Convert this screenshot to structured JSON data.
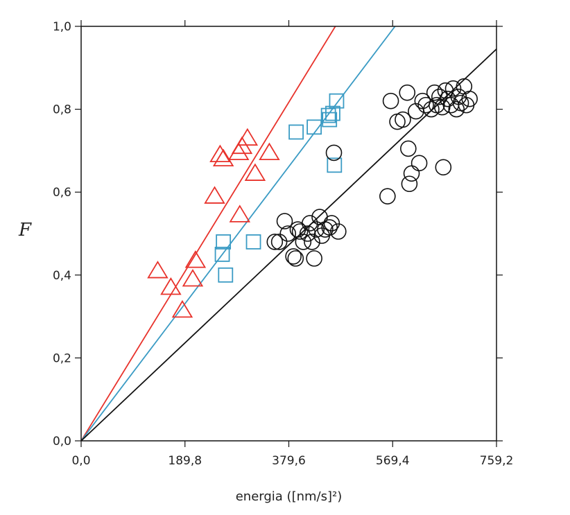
{
  "chart_data": {
    "type": "scatter",
    "xlabel": "energia ([nm/s]²)",
    "ylabel": "F",
    "xlim": [
      0,
      759.2
    ],
    "ylim": [
      0,
      1.0
    ],
    "x_ticks": [
      "0,0",
      "189,8",
      "379,6",
      "569,4",
      "759,2"
    ],
    "y_ticks": [
      "0,0",
      "0,2",
      "0,4",
      "0,6",
      "0,8",
      "1,0"
    ],
    "x_tick_values": [
      0,
      189.8,
      379.6,
      569.4,
      759.2
    ],
    "y_tick_values": [
      0,
      0.2,
      0.4,
      0.6,
      0.8,
      1.0
    ],
    "grid": false,
    "series": [
      {
        "marker": "triangle",
        "color": "#e8322b",
        "fit_slope": 0.002152,
        "points": [
          [
            140,
            0.41
          ],
          [
            164,
            0.37
          ],
          [
            185,
            0.315
          ],
          [
            204,
            0.39
          ],
          [
            209,
            0.435
          ],
          [
            244,
            0.59
          ],
          [
            254,
            0.69
          ],
          [
            260,
            0.68
          ],
          [
            288,
            0.695
          ],
          [
            290,
            0.545
          ],
          [
            294,
            0.71
          ],
          [
            304,
            0.73
          ],
          [
            318,
            0.645
          ],
          [
            344,
            0.695
          ]
        ]
      },
      {
        "marker": "square",
        "color": "#3a9bc4",
        "fit_slope": 0.001743,
        "points": [
          [
            258,
            0.45
          ],
          [
            260,
            0.48
          ],
          [
            264,
            0.4
          ],
          [
            315,
            0.48
          ],
          [
            393,
            0.745
          ],
          [
            426,
            0.757
          ],
          [
            452,
            0.785
          ],
          [
            454,
            0.775
          ],
          [
            460,
            0.79
          ],
          [
            463,
            0.665
          ],
          [
            467,
            0.82
          ]
        ]
      },
      {
        "marker": "circle",
        "color": "#111111",
        "fit_slope": 0.001245,
        "points": [
          [
            354,
            0.48
          ],
          [
            362,
            0.48
          ],
          [
            372,
            0.53
          ],
          [
            378,
            0.5
          ],
          [
            388,
            0.445
          ],
          [
            392,
            0.44
          ],
          [
            396,
            0.51
          ],
          [
            400,
            0.505
          ],
          [
            406,
            0.48
          ],
          [
            414,
            0.5
          ],
          [
            418,
            0.525
          ],
          [
            422,
            0.48
          ],
          [
            426,
            0.44
          ],
          [
            430,
            0.51
          ],
          [
            436,
            0.54
          ],
          [
            440,
            0.495
          ],
          [
            446,
            0.51
          ],
          [
            454,
            0.515
          ],
          [
            458,
            0.525
          ],
          [
            462,
            0.695
          ],
          [
            470,
            0.505
          ],
          [
            560,
            0.59
          ],
          [
            566,
            0.82
          ],
          [
            578,
            0.77
          ],
          [
            588,
            0.775
          ],
          [
            596,
            0.84
          ],
          [
            598,
            0.705
          ],
          [
            600,
            0.62
          ],
          [
            604,
            0.645
          ],
          [
            612,
            0.795
          ],
          [
            618,
            0.67
          ],
          [
            624,
            0.82
          ],
          [
            630,
            0.81
          ],
          [
            640,
            0.8
          ],
          [
            646,
            0.84
          ],
          [
            650,
            0.81
          ],
          [
            655,
            0.83
          ],
          [
            660,
            0.805
          ],
          [
            662,
            0.66
          ],
          [
            666,
            0.845
          ],
          [
            670,
            0.825
          ],
          [
            676,
            0.81
          ],
          [
            680,
            0.85
          ],
          [
            686,
            0.8
          ],
          [
            690,
            0.83
          ],
          [
            694,
            0.815
          ],
          [
            700,
            0.855
          ],
          [
            704,
            0.81
          ],
          [
            710,
            0.825
          ]
        ]
      }
    ]
  }
}
